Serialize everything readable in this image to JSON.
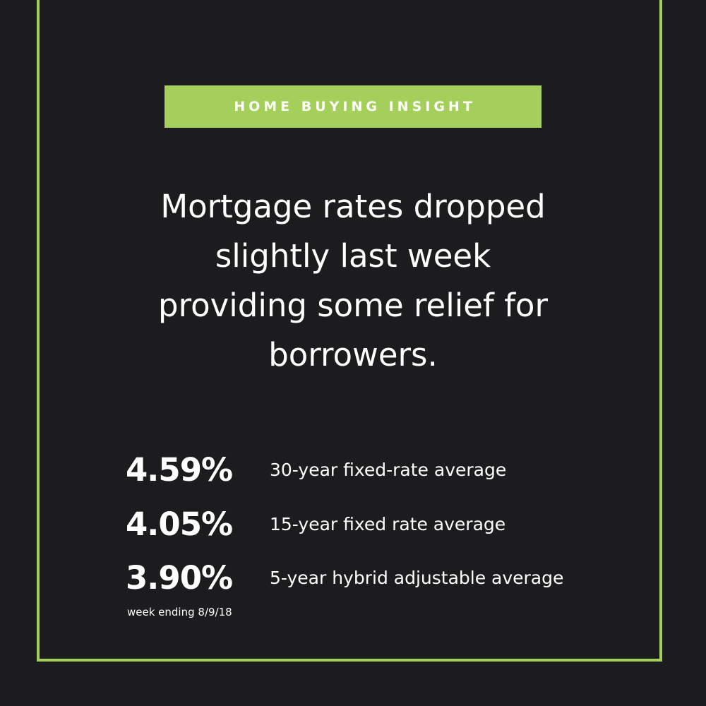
{
  "badge": {
    "label": "HOME BUYING INSIGHT"
  },
  "headline": {
    "lines": [
      "Mortgage rates dropped",
      "slightly last week",
      "providing some relief for",
      "borrowers."
    ]
  },
  "rates": [
    {
      "value": "4.59%",
      "label": "30-year fixed-rate average"
    },
    {
      "value": "4.05%",
      "label": "15-year fixed rate average"
    },
    {
      "value": "3.90%",
      "label": "5-year hybrid adjustable average"
    }
  ],
  "footnote": "week ending 8/9/18",
  "colors": {
    "background": "#1c1c1f",
    "accent": "#a4cf5a",
    "text": "#ffffff"
  }
}
